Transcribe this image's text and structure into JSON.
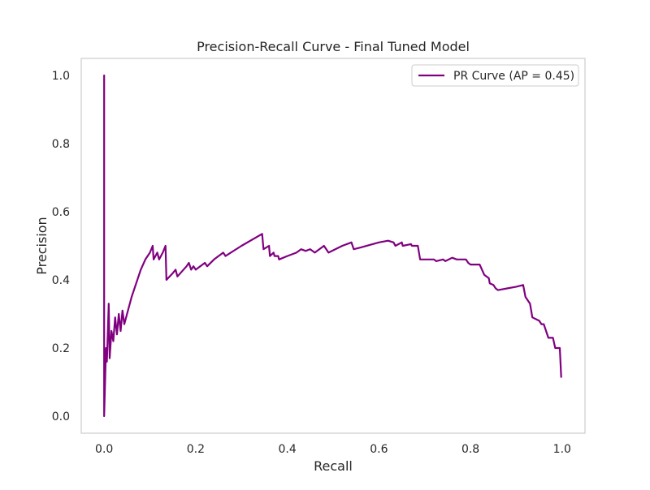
{
  "chart_data": {
    "type": "line",
    "title": "Precision-Recall Curve - Final Tuned Model",
    "xlabel": "Recall",
    "ylabel": "Precision",
    "xlim": [
      -0.05,
      1.05
    ],
    "ylim": [
      -0.05,
      1.05
    ],
    "xticks": [
      0.0,
      0.2,
      0.4,
      0.6,
      0.8,
      1.0
    ],
    "xtick_labels": [
      "0.0",
      "0.2",
      "0.4",
      "0.6",
      "0.8",
      "1.0"
    ],
    "yticks": [
      0.0,
      0.2,
      0.4,
      0.6,
      0.8,
      1.0
    ],
    "ytick_labels": [
      "0.0",
      "0.2",
      "0.4",
      "0.6",
      "0.8",
      "1.0"
    ],
    "grid": false,
    "legend_position": "top-right",
    "series": [
      {
        "name": "PR Curve (AP = 0.45)",
        "color": "#800080",
        "points": [
          [
            0.0,
            1.0
          ],
          [
            0.0,
            0.0
          ],
          [
            0.004,
            0.2
          ],
          [
            0.006,
            0.16
          ],
          [
            0.01,
            0.33
          ],
          [
            0.012,
            0.17
          ],
          [
            0.016,
            0.25
          ],
          [
            0.02,
            0.22
          ],
          [
            0.024,
            0.29
          ],
          [
            0.028,
            0.24
          ],
          [
            0.032,
            0.3
          ],
          [
            0.036,
            0.25
          ],
          [
            0.04,
            0.31
          ],
          [
            0.044,
            0.27
          ],
          [
            0.05,
            0.3
          ],
          [
            0.06,
            0.35
          ],
          [
            0.07,
            0.39
          ],
          [
            0.08,
            0.43
          ],
          [
            0.09,
            0.46
          ],
          [
            0.1,
            0.48
          ],
          [
            0.106,
            0.5
          ],
          [
            0.108,
            0.46
          ],
          [
            0.112,
            0.47
          ],
          [
            0.116,
            0.48
          ],
          [
            0.12,
            0.46
          ],
          [
            0.128,
            0.48
          ],
          [
            0.134,
            0.5
          ],
          [
            0.136,
            0.4
          ],
          [
            0.15,
            0.42
          ],
          [
            0.156,
            0.43
          ],
          [
            0.16,
            0.41
          ],
          [
            0.18,
            0.44
          ],
          [
            0.185,
            0.45
          ],
          [
            0.19,
            0.43
          ],
          [
            0.195,
            0.44
          ],
          [
            0.2,
            0.43
          ],
          [
            0.22,
            0.45
          ],
          [
            0.225,
            0.44
          ],
          [
            0.24,
            0.46
          ],
          [
            0.26,
            0.48
          ],
          [
            0.265,
            0.47
          ],
          [
            0.3,
            0.5
          ],
          [
            0.345,
            0.535
          ],
          [
            0.348,
            0.49
          ],
          [
            0.36,
            0.5
          ],
          [
            0.362,
            0.47
          ],
          [
            0.37,
            0.48
          ],
          [
            0.372,
            0.47
          ],
          [
            0.38,
            0.47
          ],
          [
            0.382,
            0.46
          ],
          [
            0.4,
            0.47
          ],
          [
            0.42,
            0.48
          ],
          [
            0.43,
            0.49
          ],
          [
            0.44,
            0.485
          ],
          [
            0.45,
            0.49
          ],
          [
            0.46,
            0.48
          ],
          [
            0.48,
            0.5
          ],
          [
            0.49,
            0.48
          ],
          [
            0.52,
            0.5
          ],
          [
            0.54,
            0.51
          ],
          [
            0.545,
            0.49
          ],
          [
            0.56,
            0.495
          ],
          [
            0.6,
            0.51
          ],
          [
            0.62,
            0.515
          ],
          [
            0.632,
            0.51
          ],
          [
            0.636,
            0.5
          ],
          [
            0.65,
            0.51
          ],
          [
            0.652,
            0.5
          ],
          [
            0.67,
            0.505
          ],
          [
            0.672,
            0.5
          ],
          [
            0.685,
            0.5
          ],
          [
            0.69,
            0.46
          ],
          [
            0.72,
            0.46
          ],
          [
            0.725,
            0.455
          ],
          [
            0.74,
            0.46
          ],
          [
            0.745,
            0.455
          ],
          [
            0.76,
            0.465
          ],
          [
            0.77,
            0.46
          ],
          [
            0.79,
            0.46
          ],
          [
            0.795,
            0.45
          ],
          [
            0.8,
            0.445
          ],
          [
            0.82,
            0.445
          ],
          [
            0.83,
            0.415
          ],
          [
            0.84,
            0.405
          ],
          [
            0.842,
            0.39
          ],
          [
            0.85,
            0.385
          ],
          [
            0.855,
            0.375
          ],
          [
            0.86,
            0.37
          ],
          [
            0.88,
            0.375
          ],
          [
            0.9,
            0.38
          ],
          [
            0.915,
            0.385
          ],
          [
            0.92,
            0.35
          ],
          [
            0.93,
            0.33
          ],
          [
            0.935,
            0.29
          ],
          [
            0.95,
            0.28
          ],
          [
            0.955,
            0.27
          ],
          [
            0.96,
            0.27
          ],
          [
            0.97,
            0.23
          ],
          [
            0.98,
            0.23
          ],
          [
            0.985,
            0.2
          ],
          [
            0.995,
            0.2
          ],
          [
            0.998,
            0.115
          ]
        ]
      }
    ]
  }
}
